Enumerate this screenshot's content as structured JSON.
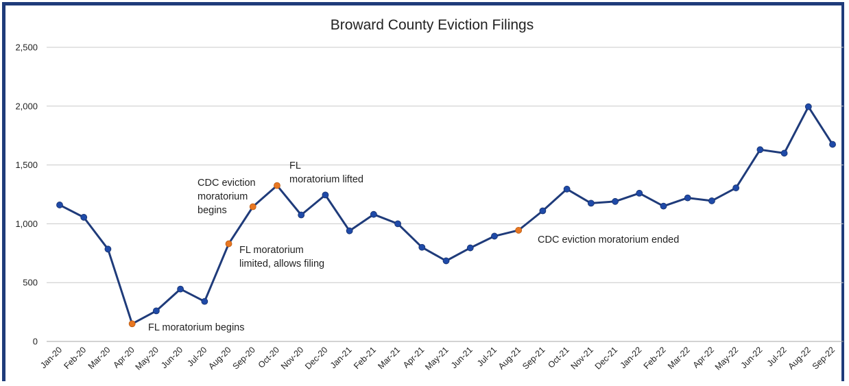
{
  "chart_data": {
    "type": "line",
    "title": "Broward County Eviction Filings",
    "xlabel": "",
    "ylabel": "",
    "ylim": [
      0,
      2500
    ],
    "yticks": [
      "0",
      "500",
      "1,000",
      "1,500",
      "2,000",
      "2,500"
    ],
    "ytick_values": [
      0,
      500,
      1000,
      1500,
      2000,
      2500
    ],
    "grid": true,
    "legend": "none",
    "line_color": "#1f3b7a",
    "marker_color": "#1f4aa8",
    "highlight_color": "#e87722",
    "categories": [
      "Jan-20",
      "Feb-20",
      "Mar-20",
      "Apr-20",
      "May-20",
      "Jun-20",
      "Jul-20",
      "Aug-20",
      "Sep-20",
      "Oct-20",
      "Nov-20",
      "Dec-20",
      "Jan-21",
      "Feb-21",
      "Mar-21",
      "Apr-21",
      "May-21",
      "Jun-21",
      "Jul-21",
      "Aug-21",
      "Sep-21",
      "Oct-21",
      "Nov-21",
      "Dec-21",
      "Jan-22",
      "Feb-22",
      "Mar-22",
      "Apr-22",
      "May-22",
      "Jun-22",
      "Jul-22",
      "Aug-22",
      "Sep-22"
    ],
    "series": [
      {
        "values": [
          1160,
          1055,
          785,
          150,
          260,
          445,
          340,
          830,
          1145,
          1325,
          1075,
          1245,
          940,
          1080,
          1000,
          800,
          685,
          795,
          895,
          945,
          1110,
          1295,
          1175,
          1190,
          1260,
          1150,
          1220,
          1195,
          1305,
          1630,
          1600,
          1995,
          1675
        ],
        "highlight_indices": [
          3,
          7,
          8,
          9,
          19
        ]
      }
    ],
    "annotations": [
      {
        "index": 3,
        "lines": [
          "FL moratorium begins"
        ]
      },
      {
        "index": 7,
        "lines": [
          "FL moratorium",
          "limited, allows filing"
        ]
      },
      {
        "index": 8,
        "lines": [
          "CDC eviction",
          "moratorium",
          "begins"
        ]
      },
      {
        "index": 9,
        "lines": [
          "FL",
          "moratorium lifted"
        ]
      },
      {
        "index": 19,
        "lines": [
          "CDC eviction moratorium ended"
        ]
      }
    ]
  }
}
